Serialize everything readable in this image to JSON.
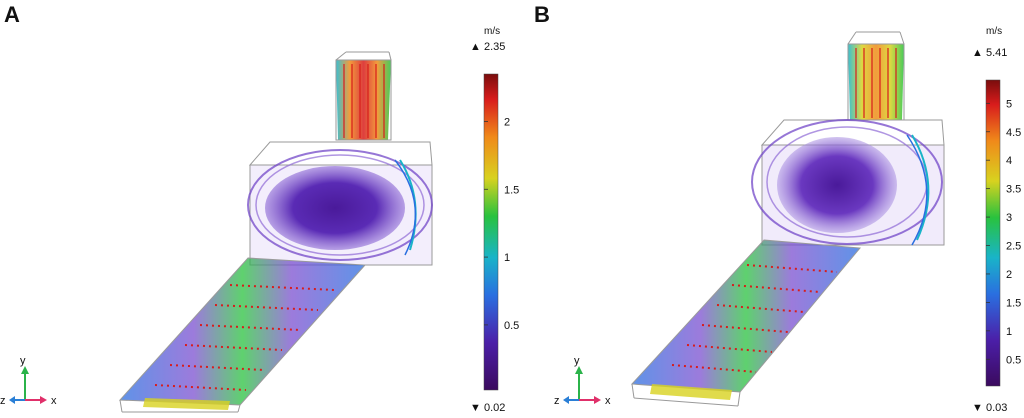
{
  "panels": [
    {
      "letter": "A",
      "colorbar": {
        "unit": "m/s",
        "max_label": "2.35",
        "min_label": "0.02",
        "ticks": [
          "2",
          "1.5",
          "1",
          "0.5"
        ],
        "tick_values": [
          2,
          1.5,
          1,
          0.5
        ],
        "range": [
          0.02,
          2.35
        ]
      },
      "axes": {
        "y": "y",
        "z": "z",
        "x": "x"
      }
    },
    {
      "letter": "B",
      "colorbar": {
        "unit": "m/s",
        "max_label": "5.41",
        "min_label": "0.03",
        "ticks": [
          "5",
          "4.5",
          "4",
          "3.5",
          "3",
          "2.5",
          "2",
          "1.5",
          "1",
          "0.5"
        ],
        "tick_values": [
          5,
          4.5,
          4,
          3.5,
          3,
          2.5,
          2,
          1.5,
          1,
          0.5
        ],
        "range": [
          0.03,
          5.41
        ]
      },
      "axes": {
        "y": "y",
        "z": "z",
        "x": "x"
      }
    }
  ],
  "colors": {
    "colormap": [
      "#3b0a5e",
      "#4b1fa8",
      "#2a6fe0",
      "#19b4c8",
      "#29c23e",
      "#d8d21f",
      "#f08a1a",
      "#d81c1c",
      "#7a0d0d"
    ],
    "box_outline": "#9a9a9a",
    "axis_y": "#2bb34a",
    "axis_x": "#e0306a",
    "axis_z": "#2a7fd6"
  }
}
